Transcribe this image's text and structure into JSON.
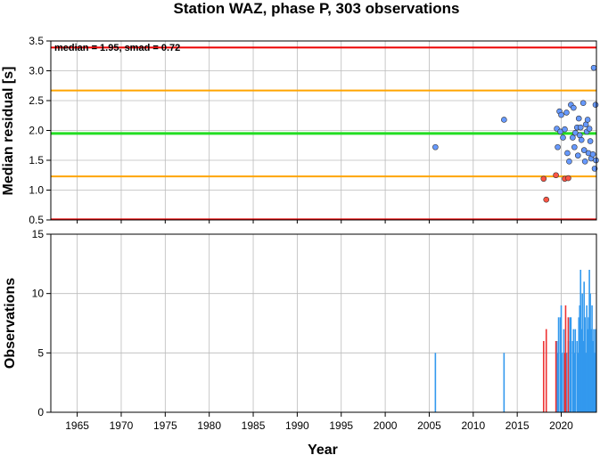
{
  "title": "Station WAZ, phase P, 303 observations",
  "colors": {
    "median_line": "#22dd22",
    "smad_line": "#ffa500",
    "limit_line": "#ee0000",
    "point_normal": "#6699ff",
    "point_low": "#ff5544",
    "bar_normal": "#3399ee",
    "bar_low": "#ee3333",
    "grid": "#bbbbbb"
  },
  "chart_data": [
    {
      "type": "scatter",
      "title": "Station WAZ, phase P, 303 observations",
      "annotation": "median = 1.95, smad = 0.72",
      "xlabel": "",
      "ylabel": "Median residual [s]",
      "xlim": [
        1962,
        2024
      ],
      "ylim": [
        0.5,
        3.5
      ],
      "yticks": [
        "0.5",
        "1.0",
        "1.5",
        "2.0",
        "2.5",
        "3.0",
        "3.5"
      ],
      "grid": true,
      "reference_lines": [
        {
          "name": "median",
          "y": 1.95,
          "color": "green"
        },
        {
          "name": "smad_upper",
          "y": 2.67,
          "color": "orange"
        },
        {
          "name": "smad_lower",
          "y": 1.23,
          "color": "orange"
        },
        {
          "name": "upper_limit",
          "y": 3.39,
          "color": "red"
        },
        {
          "name": "lower_limit",
          "y": 0.51,
          "color": "red"
        }
      ],
      "series": [
        {
          "color": "blue",
          "points": [
            [
              2005.7,
              1.72
            ],
            [
              2013.5,
              2.18
            ],
            [
              2019.5,
              2.03
            ],
            [
              2019.6,
              1.72
            ],
            [
              2019.8,
              2.32
            ],
            [
              2019.9,
              1.98
            ],
            [
              2020.0,
              2.26
            ],
            [
              2020.2,
              1.88
            ],
            [
              2020.4,
              2.02
            ],
            [
              2020.6,
              2.3
            ],
            [
              2020.7,
              1.62
            ],
            [
              2020.9,
              1.48
            ],
            [
              2021.1,
              2.43
            ],
            [
              2021.3,
              1.88
            ],
            [
              2021.4,
              2.38
            ],
            [
              2021.5,
              1.72
            ],
            [
              2021.6,
              1.96
            ],
            [
              2021.8,
              2.05
            ],
            [
              2021.9,
              1.58
            ],
            [
              2022.0,
              2.2
            ],
            [
              2022.1,
              1.92
            ],
            [
              2022.2,
              2.05
            ],
            [
              2022.3,
              1.84
            ],
            [
              2022.5,
              2.46
            ],
            [
              2022.6,
              1.67
            ],
            [
              2022.7,
              1.48
            ],
            [
              2022.8,
              2.1
            ],
            [
              2022.9,
              1.98
            ],
            [
              2023.0,
              2.18
            ],
            [
              2023.1,
              1.62
            ],
            [
              2023.2,
              2.03
            ],
            [
              2023.3,
              1.82
            ],
            [
              2023.4,
              1.53
            ],
            [
              2023.6,
              1.6
            ],
            [
              2023.7,
              3.05
            ],
            [
              2023.8,
              1.36
            ],
            [
              2023.9,
              2.43
            ],
            [
              2023.95,
              1.5
            ]
          ]
        },
        {
          "color": "red",
          "points": [
            [
              2018.0,
              1.19
            ],
            [
              2018.3,
              0.84
            ],
            [
              2019.4,
              1.25
            ],
            [
              2020.4,
              1.19
            ],
            [
              2020.8,
              1.2
            ]
          ]
        }
      ]
    },
    {
      "type": "bar",
      "xlabel": "Year",
      "ylabel": "Observations",
      "xlim": [
        1962,
        2024
      ],
      "ylim": [
        0,
        15
      ],
      "xticks": [
        "1965",
        "1970",
        "1975",
        "1980",
        "1985",
        "1990",
        "1995",
        "2000",
        "2005",
        "2010",
        "2015",
        "2020"
      ],
      "yticks": [
        "0",
        "5",
        "10",
        "15"
      ],
      "grid": true,
      "series": [
        {
          "color": "blue",
          "bars": [
            [
              2005.7,
              5
            ],
            [
              2013.5,
              5
            ],
            [
              2019.5,
              6
            ],
            [
              2019.6,
              5
            ],
            [
              2019.7,
              8
            ],
            [
              2019.9,
              8
            ],
            [
              2020.0,
              9
            ],
            [
              2020.1,
              5
            ],
            [
              2020.3,
              7
            ],
            [
              2020.6,
              5
            ],
            [
              2020.8,
              6
            ],
            [
              2021.0,
              8
            ],
            [
              2021.1,
              8
            ],
            [
              2021.3,
              6
            ],
            [
              2021.4,
              7
            ],
            [
              2021.5,
              5
            ],
            [
              2021.6,
              7
            ],
            [
              2021.8,
              6
            ],
            [
              2021.9,
              5
            ],
            [
              2022.0,
              8
            ],
            [
              2022.1,
              9
            ],
            [
              2022.2,
              12
            ],
            [
              2022.3,
              7
            ],
            [
              2022.4,
              10
            ],
            [
              2022.5,
              6
            ],
            [
              2022.6,
              11
            ],
            [
              2022.7,
              8
            ],
            [
              2022.8,
              5
            ],
            [
              2022.9,
              9
            ],
            [
              2023.0,
              7
            ],
            [
              2023.1,
              8
            ],
            [
              2023.2,
              12
            ],
            [
              2023.3,
              10
            ],
            [
              2023.4,
              7
            ],
            [
              2023.5,
              9
            ],
            [
              2023.6,
              6
            ],
            [
              2023.7,
              7
            ],
            [
              2023.8,
              5
            ],
            [
              2023.9,
              7
            ]
          ]
        },
        {
          "color": "red",
          "bars": [
            [
              2018.0,
              6
            ],
            [
              2018.3,
              7
            ],
            [
              2019.4,
              6
            ],
            [
              2020.4,
              5
            ],
            [
              2020.5,
              9
            ],
            [
              2020.8,
              8
            ]
          ]
        }
      ]
    }
  ]
}
